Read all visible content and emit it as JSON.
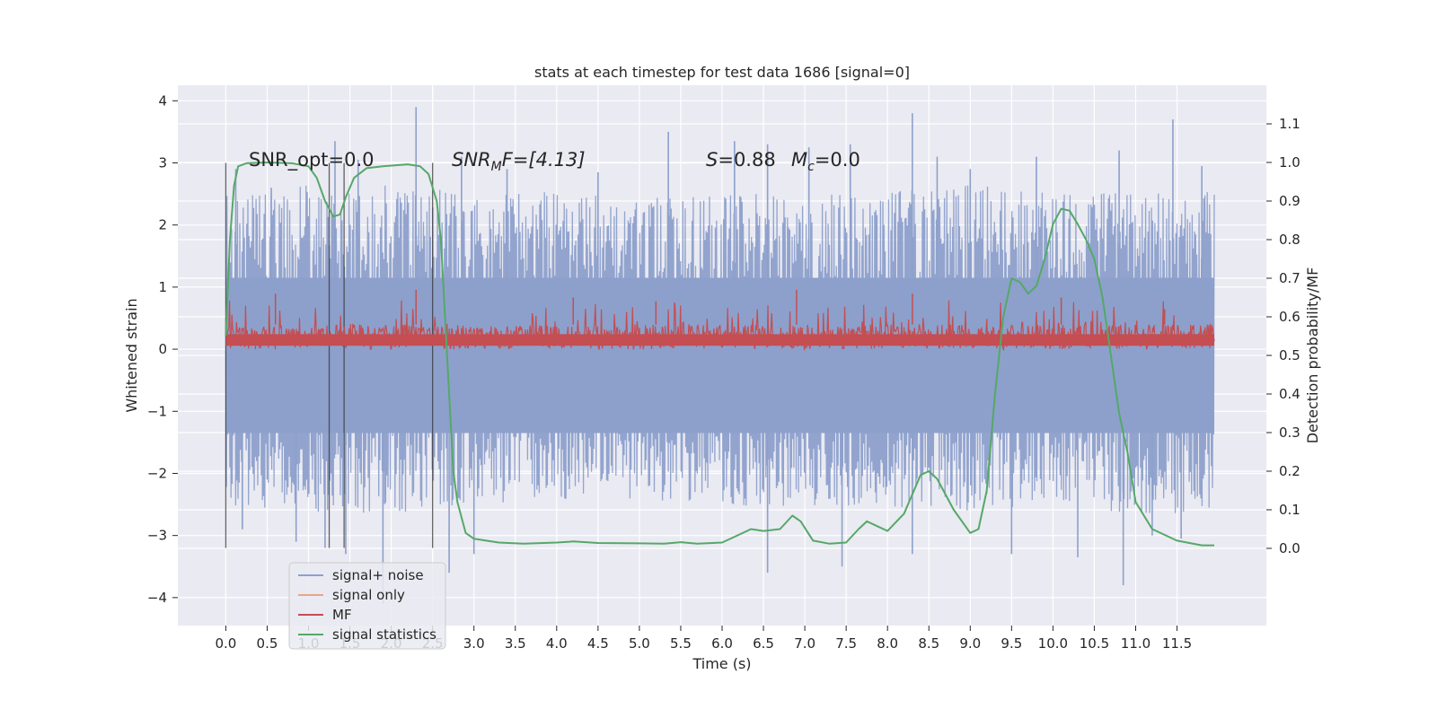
{
  "chart_data": {
    "type": "line",
    "title": "stats at each timestep for test data 1686 [signal=0]",
    "xlabel": "Time (s)",
    "ylabel_left": "Whitened strain",
    "ylabel_right": "Detection probability/MF",
    "xlim": [
      -0.58,
      12.58
    ],
    "ylim_left": [
      -4.45,
      4.25
    ],
    "ylim_right": [
      -0.2,
      1.2
    ],
    "x_ticks": [
      0.0,
      0.5,
      1.0,
      1.5,
      2.0,
      2.5,
      3.0,
      3.5,
      4.0,
      4.5,
      5.0,
      5.5,
      6.0,
      6.5,
      7.0,
      7.5,
      8.0,
      8.5,
      9.0,
      9.5,
      10.0,
      10.5,
      11.0,
      11.5
    ],
    "x_tick_labels": [
      "0.0",
      "0.5",
      "1.0",
      "1.5",
      "2.0",
      "2.5",
      "3.0",
      "3.5",
      "4.0",
      "4.5",
      "5.0",
      "5.5",
      "6.0",
      "6.5",
      "7.0",
      "7.5",
      "8.0",
      "8.5",
      "9.0",
      "9.5",
      "10.0",
      "10.5",
      "11.0",
      "11.5"
    ],
    "y_left_ticks": [
      -4,
      -3,
      -2,
      -1,
      0,
      1,
      2,
      3,
      4
    ],
    "y_left_tick_labels": [
      "−4",
      "−3",
      "−2",
      "−1",
      "0",
      "1",
      "2",
      "3",
      "4"
    ],
    "y_right_ticks": [
      0.0,
      0.1,
      0.2,
      0.3,
      0.4,
      0.5,
      0.6,
      0.7,
      0.8,
      0.9,
      1.0,
      1.1
    ],
    "y_right_tick_labels": [
      "0.0",
      "0.1",
      "0.2",
      "0.3",
      "0.4",
      "0.5",
      "0.6",
      "0.7",
      "0.8",
      "0.9",
      "1.0",
      "1.1"
    ],
    "grid": true,
    "legend_placement": "lower-left",
    "annotations": {
      "snr_opt": "SNR_opt=0.0",
      "snr_mf_main": "SNR",
      "snr_mf_sub": "M",
      "snr_mf_rest": "F=[4.13]",
      "s_main": "S",
      "s_rest": "=0.88",
      "mc_main": "M",
      "mc_sub": "c",
      "mc_rest": "=0.0"
    },
    "vertical_lines_x": [
      0.0,
      1.25,
      1.43,
      2.5
    ],
    "vertical_lines_ylim": [
      -3.2,
      3.0
    ],
    "series": [
      {
        "name": "signal+ noise",
        "color": "#8da0cb",
        "axis": "left",
        "x_range": [
          0.0,
          11.95
        ],
        "envelope_upper": [
          [
            0.0,
            2.3
          ],
          [
            1.0,
            2.4
          ],
          [
            2.0,
            2.4
          ],
          [
            3.0,
            2.3
          ],
          [
            4.0,
            2.3
          ],
          [
            5.0,
            2.2
          ],
          [
            6.0,
            2.3
          ],
          [
            7.0,
            2.3
          ],
          [
            8.0,
            2.3
          ],
          [
            9.0,
            2.4
          ],
          [
            10.0,
            2.3
          ],
          [
            11.0,
            2.3
          ],
          [
            11.95,
            2.3
          ]
        ],
        "envelope_lower": [
          [
            0.0,
            -2.3
          ],
          [
            1.0,
            -2.4
          ],
          [
            2.0,
            -2.4
          ],
          [
            3.0,
            -2.3
          ],
          [
            4.0,
            -2.2
          ],
          [
            5.0,
            -2.2
          ],
          [
            6.0,
            -2.3
          ],
          [
            7.0,
            -2.3
          ],
          [
            8.0,
            -2.3
          ],
          [
            9.0,
            -2.4
          ],
          [
            10.0,
            -2.3
          ],
          [
            11.0,
            -2.4
          ],
          [
            11.95,
            -2.4
          ]
        ],
        "peaks": [
          [
            0.12,
            2.9
          ],
          [
            0.55,
            2.6
          ],
          [
            1.32,
            3.35
          ],
          [
            1.6,
            3.05
          ],
          [
            2.3,
            3.9
          ],
          [
            2.85,
            3.1
          ],
          [
            3.4,
            2.9
          ],
          [
            4.5,
            2.85
          ],
          [
            5.35,
            3.5
          ],
          [
            6.15,
            3.35
          ],
          [
            6.55,
            3.3
          ],
          [
            7.05,
            3.25
          ],
          [
            7.55,
            3.3
          ],
          [
            8.3,
            3.8
          ],
          [
            8.6,
            3.1
          ],
          [
            9.0,
            2.9
          ],
          [
            9.8,
            3.1
          ],
          [
            10.8,
            3.2
          ],
          [
            11.45,
            3.7
          ],
          [
            11.8,
            2.95
          ]
        ],
        "troughs": [
          [
            0.2,
            -2.9
          ],
          [
            0.85,
            -3.1
          ],
          [
            1.2,
            -3.2
          ],
          [
            1.45,
            -3.3
          ],
          [
            1.9,
            -4.1
          ],
          [
            2.7,
            -3.6
          ],
          [
            3.0,
            -3.3
          ],
          [
            6.55,
            -3.6
          ],
          [
            7.45,
            -3.5
          ],
          [
            8.3,
            -3.3
          ],
          [
            9.5,
            -3.3
          ],
          [
            10.3,
            -3.35
          ],
          [
            10.85,
            -3.8
          ],
          [
            11.2,
            -3.0
          ],
          [
            11.55,
            -3.05
          ]
        ]
      },
      {
        "name": "signal only",
        "color": "#e9a58a",
        "axis": "left",
        "values": []
      },
      {
        "name": "MF",
        "color": "#c44e52",
        "axis": "right",
        "x_range": [
          0.0,
          11.95
        ],
        "band_low": 0.515,
        "band_high": 0.58,
        "peak_max": 0.67,
        "peaks": [
          [
            0.6,
            0.66
          ],
          [
            2.3,
            0.67
          ],
          [
            4.2,
            0.65
          ],
          [
            5.2,
            0.64
          ],
          [
            6.9,
            0.67
          ],
          [
            8.3,
            0.66
          ],
          [
            10.1,
            0.65
          ],
          [
            11.35,
            0.62
          ]
        ]
      },
      {
        "name": "signal statistics",
        "color": "#55a868",
        "axis": "right",
        "x": [
          0.0,
          0.05,
          0.1,
          0.15,
          0.25,
          0.5,
          0.8,
          1.0,
          1.1,
          1.2,
          1.3,
          1.38,
          1.45,
          1.55,
          1.7,
          1.9,
          2.2,
          2.35,
          2.45,
          2.55,
          2.6,
          2.65,
          2.7,
          2.75,
          2.8,
          2.9,
          3.0,
          3.3,
          3.6,
          4.0,
          4.2,
          4.5,
          5.0,
          5.3,
          5.5,
          5.7,
          6.0,
          6.2,
          6.35,
          6.5,
          6.7,
          6.85,
          6.95,
          7.1,
          7.3,
          7.5,
          7.65,
          7.75,
          7.85,
          8.0,
          8.2,
          8.4,
          8.5,
          8.6,
          8.8,
          9.0,
          9.1,
          9.2,
          9.3,
          9.4,
          9.5,
          9.6,
          9.7,
          9.8,
          9.9,
          10.0,
          10.1,
          10.2,
          10.3,
          10.4,
          10.5,
          10.6,
          10.7,
          10.8,
          10.9,
          11.0,
          11.2,
          11.5,
          11.8,
          11.95
        ],
        "y": [
          0.55,
          0.8,
          0.94,
          0.99,
          0.998,
          1.0,
          0.998,
          0.99,
          0.96,
          0.9,
          0.86,
          0.865,
          0.91,
          0.96,
          0.985,
          0.99,
          0.995,
          0.99,
          0.97,
          0.9,
          0.8,
          0.6,
          0.4,
          0.2,
          0.12,
          0.04,
          0.025,
          0.015,
          0.012,
          0.015,
          0.018,
          0.014,
          0.013,
          0.012,
          0.016,
          0.012,
          0.015,
          0.035,
          0.05,
          0.045,
          0.05,
          0.085,
          0.07,
          0.02,
          0.012,
          0.015,
          0.05,
          0.07,
          0.06,
          0.045,
          0.09,
          0.19,
          0.2,
          0.18,
          0.1,
          0.04,
          0.05,
          0.15,
          0.4,
          0.6,
          0.7,
          0.69,
          0.66,
          0.68,
          0.75,
          0.84,
          0.88,
          0.875,
          0.84,
          0.8,
          0.75,
          0.65,
          0.5,
          0.35,
          0.25,
          0.12,
          0.05,
          0.02,
          0.008,
          0.008
        ]
      }
    ]
  }
}
